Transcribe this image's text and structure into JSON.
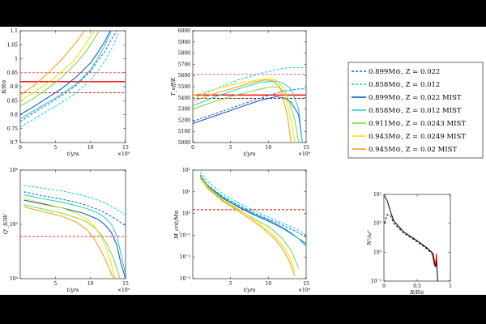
{
  "chart_data": [
    {
      "type": "line",
      "id": "radius",
      "xlabel": "t/yrs",
      "ylabel": "R/R⊙",
      "xlim": [
        0,
        15
      ],
      "ylim": [
        0.7,
        1.1
      ],
      "xticks": [
        "0",
        "5",
        "10",
        "15"
      ],
      "yticks": [
        "0.7",
        "0.75",
        "0.8",
        "0.85",
        "0.9",
        "0.95",
        "1",
        "1.05",
        "1.1"
      ],
      "x_multiplier": "×10⁹",
      "hlines": [
        {
          "value": 0.95,
          "color": "#ff5555",
          "style": "dashed"
        },
        {
          "value": 0.918,
          "color": "#ee0000",
          "style": "solid"
        },
        {
          "value": 0.878,
          "color": "#cc0000",
          "style": "dashed"
        }
      ],
      "series": [
        {
          "series_index": 0,
          "x": [
            0,
            2,
            4,
            6,
            8,
            10,
            11,
            12,
            13,
            14
          ],
          "y": [
            0.775,
            0.808,
            0.838,
            0.87,
            0.905,
            0.955,
            0.99,
            1.025,
            1.07,
            1.11
          ]
        },
        {
          "series_index": 1,
          "x": [
            0,
            2,
            4,
            6,
            8,
            10,
            11,
            12,
            13,
            14
          ],
          "y": [
            0.755,
            0.785,
            0.815,
            0.845,
            0.878,
            0.925,
            0.955,
            0.99,
            1.035,
            1.09
          ]
        },
        {
          "series_index": 2,
          "x": [
            0,
            2,
            4,
            6,
            8,
            10,
            11,
            12,
            13
          ],
          "y": [
            0.8,
            0.83,
            0.862,
            0.895,
            0.935,
            0.985,
            1.02,
            1.06,
            1.11
          ]
        },
        {
          "series_index": 3,
          "x": [
            0,
            2,
            4,
            6,
            8,
            10,
            11,
            12,
            13
          ],
          "y": [
            0.785,
            0.815,
            0.845,
            0.875,
            0.91,
            0.96,
            1.0,
            1.045,
            1.1
          ]
        },
        {
          "series_index": 4,
          "x": [
            0,
            2,
            4,
            6,
            8,
            9.5,
            10.5,
            11.5
          ],
          "y": [
            0.83,
            0.86,
            0.895,
            0.935,
            0.985,
            1.03,
            1.07,
            1.11
          ]
        },
        {
          "series_index": 5,
          "x": [
            0,
            2,
            4,
            6,
            8,
            9,
            10,
            11
          ],
          "y": [
            0.85,
            0.88,
            0.915,
            0.955,
            1.005,
            1.04,
            1.08,
            1.11
          ]
        },
        {
          "series_index": 6,
          "x": [
            0,
            2,
            4,
            6,
            7,
            8,
            9,
            10
          ],
          "y": [
            0.87,
            0.905,
            0.95,
            1.0,
            1.03,
            1.06,
            1.095,
            1.11
          ]
        }
      ]
    },
    {
      "type": "line",
      "id": "teff",
      "xlabel": "t/yrs",
      "ylabel": "T_eff/K",
      "xlim": [
        0,
        15
      ],
      "ylim": [
        5000,
        6000
      ],
      "xticks": [
        "0",
        "5",
        "10",
        "15"
      ],
      "yticks": [
        "5000",
        "5100",
        "5200",
        "5300",
        "5400",
        "5500",
        "5600",
        "5700",
        "5800",
        "5900",
        "6000"
      ],
      "x_multiplier": "×10⁹",
      "hlines": [
        {
          "value": 5610,
          "color": "#ff5555",
          "style": "dashed"
        },
        {
          "value": 5425,
          "color": "#ee0000",
          "style": "solid"
        },
        {
          "value": 5395,
          "color": "#cc0000",
          "style": "dashed"
        }
      ],
      "series": [
        {
          "series_index": 0,
          "x": [
            0,
            3,
            6,
            9,
            11,
            12,
            13,
            14,
            15
          ],
          "y": [
            5190,
            5260,
            5330,
            5400,
            5440,
            5460,
            5470,
            5480,
            5480
          ]
        },
        {
          "series_index": 1,
          "x": [
            0,
            3,
            6,
            9,
            11,
            12,
            13,
            14,
            15
          ],
          "y": [
            5390,
            5480,
            5560,
            5620,
            5650,
            5665,
            5670,
            5672,
            5670
          ]
        },
        {
          "series_index": 2,
          "x": [
            0,
            3,
            6,
            9,
            11,
            12,
            13,
            14,
            14.5
          ],
          "y": [
            5170,
            5240,
            5310,
            5380,
            5410,
            5400,
            5360,
            5250,
            5000
          ]
        },
        {
          "series_index": 3,
          "x": [
            0,
            3,
            6,
            9,
            11,
            12,
            13,
            14,
            14.5
          ],
          "y": [
            5330,
            5410,
            5480,
            5540,
            5550,
            5530,
            5480,
            5300,
            5000
          ]
        },
        {
          "series_index": 4,
          "x": [
            0,
            3,
            6,
            9,
            10.5,
            11.5,
            12.5,
            13.5,
            14
          ],
          "y": [
            5300,
            5370,
            5430,
            5480,
            5500,
            5490,
            5420,
            5200,
            5000
          ]
        },
        {
          "series_index": 5,
          "x": [
            0,
            3,
            6,
            9,
            10,
            11,
            12,
            13,
            13.5
          ],
          "y": [
            5420,
            5480,
            5530,
            5565,
            5570,
            5560,
            5490,
            5200,
            5000
          ]
        },
        {
          "series_index": 6,
          "x": [
            0,
            3,
            6,
            8,
            9.5,
            10.5,
            11.5,
            12.5,
            13
          ],
          "y": [
            5370,
            5440,
            5500,
            5540,
            5560,
            5555,
            5500,
            5250,
            5000
          ]
        }
      ]
    },
    {
      "type": "line",
      "id": "q-iw",
      "xlabel": "t/yrs",
      "ylabel": "Q'_IGW",
      "xlim": [
        0,
        15
      ],
      "ylim": [
        10000,
        1000000
      ],
      "yscale": "log",
      "xticks": [
        "5",
        "10",
        "15"
      ],
      "yticks": [
        "10⁴",
        "10⁵",
        "10⁶"
      ],
      "x_multiplier": "×10⁹",
      "hlines": [
        {
          "value": 60000,
          "color": "#ff3333",
          "style": "dashed"
        }
      ],
      "series": [
        {
          "series_index": 0,
          "x": [
            0.5,
            3,
            6,
            9,
            11,
            12,
            13,
            14,
            15
          ],
          "y": [
            400000,
            340000,
            290000,
            235000,
            190000,
            165000,
            140000,
            115000,
            95000
          ]
        },
        {
          "series_index": 1,
          "x": [
            0.5,
            3,
            6,
            9,
            11,
            12,
            13,
            14,
            15
          ],
          "y": [
            520000,
            470000,
            410000,
            340000,
            280000,
            250000,
            215000,
            180000,
            150000
          ]
        },
        {
          "series_index": 2,
          "x": [
            0.5,
            3,
            6,
            9,
            11,
            12,
            13,
            13.8,
            14.3,
            15
          ],
          "y": [
            280000,
            240000,
            200000,
            160000,
            125000,
            100000,
            70000,
            40000,
            20000,
            10000
          ]
        },
        {
          "series_index": 3,
          "x": [
            0.5,
            3,
            6,
            9,
            11,
            12,
            13,
            13.8,
            14.3,
            15
          ],
          "y": [
            350000,
            300000,
            255000,
            205000,
            165000,
            135000,
            100000,
            60000,
            30000,
            12000
          ]
        },
        {
          "series_index": 4,
          "x": [
            0.5,
            3,
            6,
            9,
            10.5,
            11.5,
            12.5,
            13.2,
            13.8,
            14.2
          ],
          "y": [
            230000,
            195000,
            160000,
            120000,
            90000,
            65000,
            40000,
            25000,
            15000,
            10000
          ]
        },
        {
          "series_index": 5,
          "x": [
            0.5,
            3,
            6,
            8,
            9.5,
            10.5,
            11.5,
            12.3,
            13,
            13.5
          ],
          "y": [
            300000,
            250000,
            200000,
            160000,
            125000,
            95000,
            60000,
            35000,
            18000,
            10000
          ]
        },
        {
          "series_index": 6,
          "x": [
            0.5,
            3,
            6,
            8,
            9.5,
            10.5,
            11.5,
            12.3,
            13,
            13.5
          ],
          "y": [
            210000,
            175000,
            140000,
            110000,
            80000,
            55000,
            33000,
            20000,
            12000,
            10000
          ]
        }
      ]
    },
    {
      "type": "line",
      "id": "mass-ratio",
      "xlabel": "t/yrs",
      "ylabel": "M_crit/M⊙",
      "xlim": [
        0,
        15
      ],
      "ylim": [
        0.001,
        100
      ],
      "yscale": "log",
      "xticks": [
        "5",
        "10",
        "15"
      ],
      "yticks": [
        "10⁻³",
        "10⁻²",
        "10⁻¹",
        "10⁰",
        "10¹",
        "10²"
      ],
      "x_multiplier": "×10⁹",
      "hlines": [
        {
          "value": 1.5,
          "color": "#cc0000",
          "style": "dashed"
        }
      ],
      "series": [
        {
          "series_index": 0,
          "x": [
            1,
            2,
            4,
            6,
            8,
            10,
            12,
            14,
            15
          ],
          "y": [
            60,
            20,
            6,
            2.5,
            1.1,
            0.55,
            0.28,
            0.13,
            0.08
          ]
        },
        {
          "series_index": 1,
          "x": [
            1,
            2,
            4,
            6,
            8,
            10,
            12,
            14,
            15
          ],
          "y": [
            80,
            30,
            8,
            3.2,
            1.4,
            0.7,
            0.35,
            0.17,
            0.1
          ]
        },
        {
          "series_index": 2,
          "x": [
            1,
            2,
            4,
            6,
            8,
            10,
            12,
            13,
            14,
            15
          ],
          "y": [
            50,
            18,
            5,
            2,
            0.9,
            0.45,
            0.2,
            0.12,
            0.07,
            0.04
          ]
        },
        {
          "series_index": 3,
          "x": [
            1,
            2,
            4,
            6,
            8,
            10,
            12,
            13,
            14,
            15
          ],
          "y": [
            55,
            19,
            5.5,
            2.2,
            1,
            0.5,
            0.22,
            0.13,
            0.07,
            0.03
          ]
        },
        {
          "series_index": 4,
          "x": [
            1,
            2,
            4,
            6,
            8,
            10,
            11,
            12,
            13,
            14
          ],
          "y": [
            45,
            15,
            4,
            1.5,
            0.6,
            0.25,
            0.13,
            0.06,
            0.02,
            0.003
          ]
        },
        {
          "series_index": 5,
          "x": [
            1,
            2,
            4,
            6,
            8,
            9.5,
            11,
            12,
            12.8,
            13.5
          ],
          "y": [
            48,
            16,
            4.2,
            1.6,
            0.55,
            0.22,
            0.08,
            0.03,
            0.01,
            0.002
          ]
        },
        {
          "series_index": 6,
          "x": [
            1,
            2,
            4,
            6,
            8,
            9.5,
            11,
            12,
            12.8,
            13.5
          ],
          "y": [
            42,
            14,
            3.6,
            1.3,
            0.45,
            0.18,
            0.06,
            0.02,
            0.006,
            0.0013
          ]
        }
      ]
    },
    {
      "type": "line",
      "id": "profile",
      "xlabel": "R/R⊙",
      "ylabel": "N²/ω²",
      "xlim": [
        0,
        1
      ],
      "ylim": [
        0.1,
        100
      ],
      "yscale": "log",
      "xticks": [
        "0",
        "0.5",
        "1"
      ],
      "yticks": [
        "10⁻¹",
        "10⁰",
        "10¹",
        "10²"
      ],
      "series": [
        {
          "name": "solid",
          "color": "#000000",
          "style": "solid",
          "x": [
            0.01,
            0.05,
            0.1,
            0.15,
            0.3,
            0.5,
            0.65,
            0.74,
            0.76,
            0.78,
            0.79,
            0.8,
            0.81
          ],
          "y": [
            90,
            60,
            25,
            12,
            5,
            2.5,
            1.4,
            0.9,
            0.5,
            0.3,
            0.7,
            0.25,
            0.1
          ]
        },
        {
          "name": "dashed",
          "color": "#000000",
          "style": "dashed",
          "x": [
            0.01,
            0.05,
            0.1,
            0.15,
            0.3,
            0.5,
            0.65,
            0.72
          ],
          "y": [
            10,
            20,
            18,
            10,
            4.5,
            2.3,
            1.3,
            0.9
          ]
        },
        {
          "name": "red",
          "color": "#cc0000",
          "style": "solid",
          "x": [
            0.72,
            0.74,
            0.76,
            0.78,
            0.79,
            0.8
          ],
          "y": [
            1,
            0.6,
            0.35,
            0.45,
            0.9,
            0.3
          ]
        }
      ]
    }
  ],
  "legend": [
    {
      "label": "0.899M⊙, Z = 0.022",
      "color": "#1f5fd0",
      "style": "dashed"
    },
    {
      "label": "0.858M⊙, Z = 0.012",
      "color": "#00d8e0",
      "style": "dashed"
    },
    {
      "label": "0.899M⊙, Z = 0.022 MIST",
      "color": "#0a4fc0",
      "style": "solid"
    },
    {
      "label": "0.858M⊙, Z = 0.012 MIST",
      "color": "#18d0c8",
      "style": "solid"
    },
    {
      "label": "0.911M⊙, Z = 0.0243 MIST",
      "color": "#6fdc3a",
      "style": "solid"
    },
    {
      "label": "0.943M⊙, Z = 0.0249 MIST",
      "color": "#f2e200",
      "style": "solid"
    },
    {
      "label": "0.945M⊙, Z = 0.02 MIST",
      "color": "#ff9a00",
      "style": "solid"
    }
  ]
}
